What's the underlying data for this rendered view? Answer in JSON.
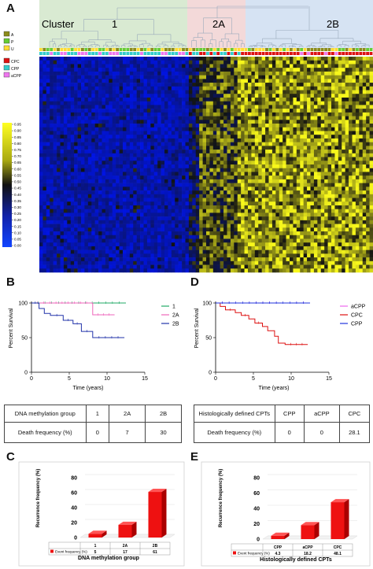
{
  "panels": {
    "A": "A",
    "B": "B",
    "C": "C",
    "D": "D",
    "E": "E"
  },
  "heatmap": {
    "cluster_label": "Cluster",
    "clusters": [
      {
        "name": "1",
        "color": "#d9ead2"
      },
      {
        "name": "2A",
        "color": "#f3d9d9"
      },
      {
        "name": "2B",
        "color": "#d6e3f3"
      }
    ],
    "legend_group1": [
      {
        "label": "A",
        "color": "#8b8b1a"
      },
      {
        "label": "P",
        "color": "#66cc33"
      },
      {
        "label": "U",
        "color": "#ffdd33"
      }
    ],
    "legend_group2": [
      {
        "label": "CPC",
        "color": "#dd1111"
      },
      {
        "label": "CPP",
        "color": "#33cccc"
      },
      {
        "label": "aCPP",
        "color": "#ee77ee"
      }
    ],
    "colorbar_ticks": [
      "0.95",
      "0.90",
      "0.85",
      "0.80",
      "0.75",
      "0.70",
      "0.65",
      "0.60",
      "0.55",
      "0.50",
      "0.45",
      "0.40",
      "0.35",
      "0.30",
      "0.25",
      "0.20",
      "0.15",
      "0.10",
      "0.05",
      "0.00"
    ]
  },
  "chart_data": [
    {
      "type": "line",
      "panel": "B",
      "ylabel": "Percent Survival",
      "xlabel": "Time (years)",
      "xlim": [
        0,
        15
      ],
      "ylim": [
        0,
        100
      ],
      "xticks": [
        "0",
        "5",
        "10",
        "15"
      ],
      "yticks": [
        "0",
        "50",
        "100"
      ],
      "series": [
        {
          "name": "1",
          "color": "#22aa66",
          "steps": [
            [
              0,
              100
            ],
            [
              12.5,
              100
            ]
          ]
        },
        {
          "name": "2A",
          "color": "#ee66bb",
          "steps": [
            [
              0,
              100
            ],
            [
              8.1,
              100
            ],
            [
              8.1,
              83
            ],
            [
              11,
              83
            ]
          ]
        },
        {
          "name": "2B",
          "color": "#2233aa",
          "steps": [
            [
              0,
              100
            ],
            [
              1,
              100
            ],
            [
              1,
              92
            ],
            [
              1.7,
              92
            ],
            [
              1.7,
              85
            ],
            [
              2.5,
              85
            ],
            [
              2.5,
              82
            ],
            [
              4.2,
              82
            ],
            [
              4.2,
              75
            ],
            [
              5.5,
              75
            ],
            [
              5.5,
              70
            ],
            [
              6.6,
              70
            ],
            [
              6.6,
              59
            ],
            [
              8.1,
              59
            ],
            [
              8.1,
              50
            ],
            [
              12.3,
              50
            ]
          ]
        }
      ]
    },
    {
      "type": "line",
      "panel": "D",
      "ylabel": "Percent Survival",
      "xlabel": "Time (years)",
      "xlim": [
        0,
        15
      ],
      "ylim": [
        0,
        100
      ],
      "xticks": [
        "0",
        "5",
        "10",
        "15"
      ],
      "yticks": [
        "0",
        "50",
        "100"
      ],
      "series": [
        {
          "name": "aCPP",
          "color": "#ee66ee",
          "steps": [
            [
              0,
              100
            ],
            [
              12.5,
              100
            ]
          ]
        },
        {
          "name": "CPC",
          "color": "#dd1111",
          "steps": [
            [
              0,
              100
            ],
            [
              0.6,
              100
            ],
            [
              0.6,
              95
            ],
            [
              1.3,
              95
            ],
            [
              1.3,
              90
            ],
            [
              2.6,
              90
            ],
            [
              2.6,
              86
            ],
            [
              3.4,
              86
            ],
            [
              3.4,
              82
            ],
            [
              4.4,
              82
            ],
            [
              4.4,
              77
            ],
            [
              5.2,
              77
            ],
            [
              5.2,
              71
            ],
            [
              6.2,
              71
            ],
            [
              6.2,
              66
            ],
            [
              6.9,
              66
            ],
            [
              6.9,
              60
            ],
            [
              7.8,
              60
            ],
            [
              7.8,
              52
            ],
            [
              8.3,
              52
            ],
            [
              8.3,
              42
            ],
            [
              9.2,
              42
            ],
            [
              9.2,
              40
            ],
            [
              12.2,
              40
            ]
          ]
        },
        {
          "name": "CPP",
          "color": "#2233dd",
          "steps": [
            [
              0,
              100
            ],
            [
              12.5,
              100
            ]
          ]
        }
      ]
    },
    {
      "type": "bar",
      "panel": "C",
      "categories": [
        "1",
        "2A",
        "2B"
      ],
      "values": [
        5,
        17,
        61
      ],
      "ylabel": "Recurrence frequency (%)",
      "xlabel": "DNA methylation group",
      "ylim": [
        0,
        80
      ],
      "yticks": [
        "0",
        "20",
        "40",
        "60",
        "80"
      ],
      "series_name": "Event frequency (%)",
      "value_labels": [
        "5",
        "17",
        "61"
      ]
    },
    {
      "type": "bar",
      "panel": "E",
      "categories": [
        "CPP",
        "aCPP",
        "CPC"
      ],
      "values": [
        4.3,
        18.2,
        48.1
      ],
      "ylabel": "Recurrence frequency (%)",
      "xlabel": "Histologically defined CPTs",
      "ylim": [
        0,
        80
      ],
      "yticks": [
        "0",
        "20",
        "40",
        "60",
        "80"
      ],
      "series_name": "Event frequency (%)",
      "value_labels": [
        "4.3",
        "18.2",
        "48.1"
      ]
    }
  ],
  "table_B": {
    "row1": [
      "DNA methylation group",
      "1",
      "2A",
      "2B"
    ],
    "row2": [
      "Death frequency (%)",
      "0",
      "7",
      "30"
    ]
  },
  "table_D": {
    "row1": [
      "Histologically defined CPTs",
      "CPP",
      "aCPP",
      "CPC"
    ],
    "row2": [
      "Death frequency (%)",
      "0",
      "0",
      "28.1"
    ]
  },
  "colors": {
    "bar": "#ee1111",
    "bar_dark": "#aa0000",
    "heat_low": "#1133cc",
    "heat_mid": "#111111",
    "heat_high": "#eeee22"
  }
}
